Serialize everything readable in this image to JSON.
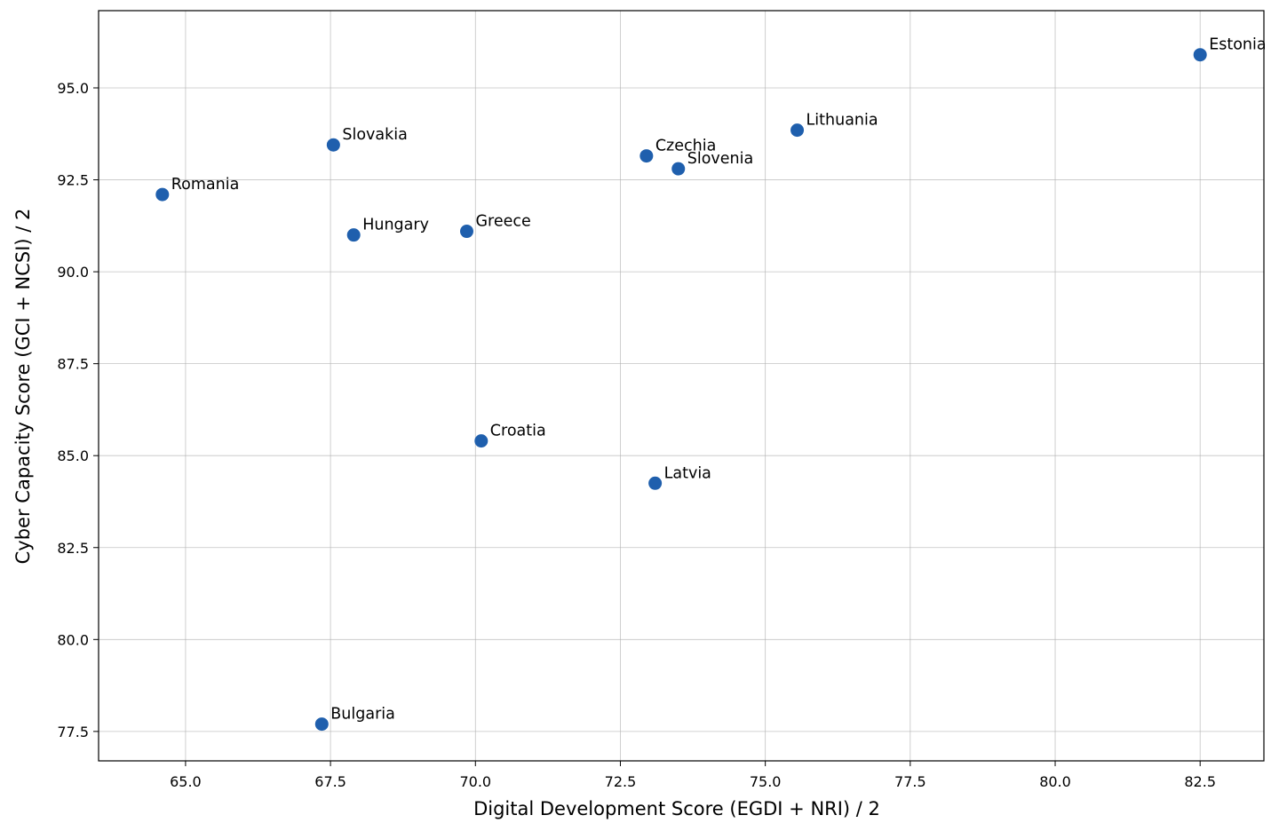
{
  "chart_data": {
    "type": "scatter",
    "title": "",
    "xlabel": "Digital Development Score (EGDI + NRI) / 2",
    "ylabel": "Cyber Capacity Score (GCI + NCSI) / 2",
    "xlim": [
      63.5,
      83.6
    ],
    "ylim": [
      76.7,
      97.1
    ],
    "x_ticks": [
      65.0,
      67.5,
      70.0,
      72.5,
      75.0,
      77.5,
      80.0,
      82.5
    ],
    "y_ticks": [
      77.5,
      80.0,
      82.5,
      85.0,
      87.5,
      90.0,
      92.5,
      95.0
    ],
    "grid": true,
    "marker_color": "#1f5fad",
    "points": [
      {
        "label": "Estonia",
        "x": 82.5,
        "y": 95.9
      },
      {
        "label": "Lithuania",
        "x": 75.55,
        "y": 93.85
      },
      {
        "label": "Slovakia",
        "x": 67.55,
        "y": 93.45
      },
      {
        "label": "Czechia",
        "x": 72.95,
        "y": 93.15
      },
      {
        "label": "Slovenia",
        "x": 73.5,
        "y": 92.8
      },
      {
        "label": "Romania",
        "x": 64.6,
        "y": 92.1
      },
      {
        "label": "Hungary",
        "x": 67.9,
        "y": 91.0
      },
      {
        "label": "Greece",
        "x": 69.85,
        "y": 91.1
      },
      {
        "label": "Croatia",
        "x": 70.1,
        "y": 85.4
      },
      {
        "label": "Latvia",
        "x": 73.1,
        "y": 84.25
      },
      {
        "label": "Bulgaria",
        "x": 67.35,
        "y": 77.7
      }
    ]
  }
}
